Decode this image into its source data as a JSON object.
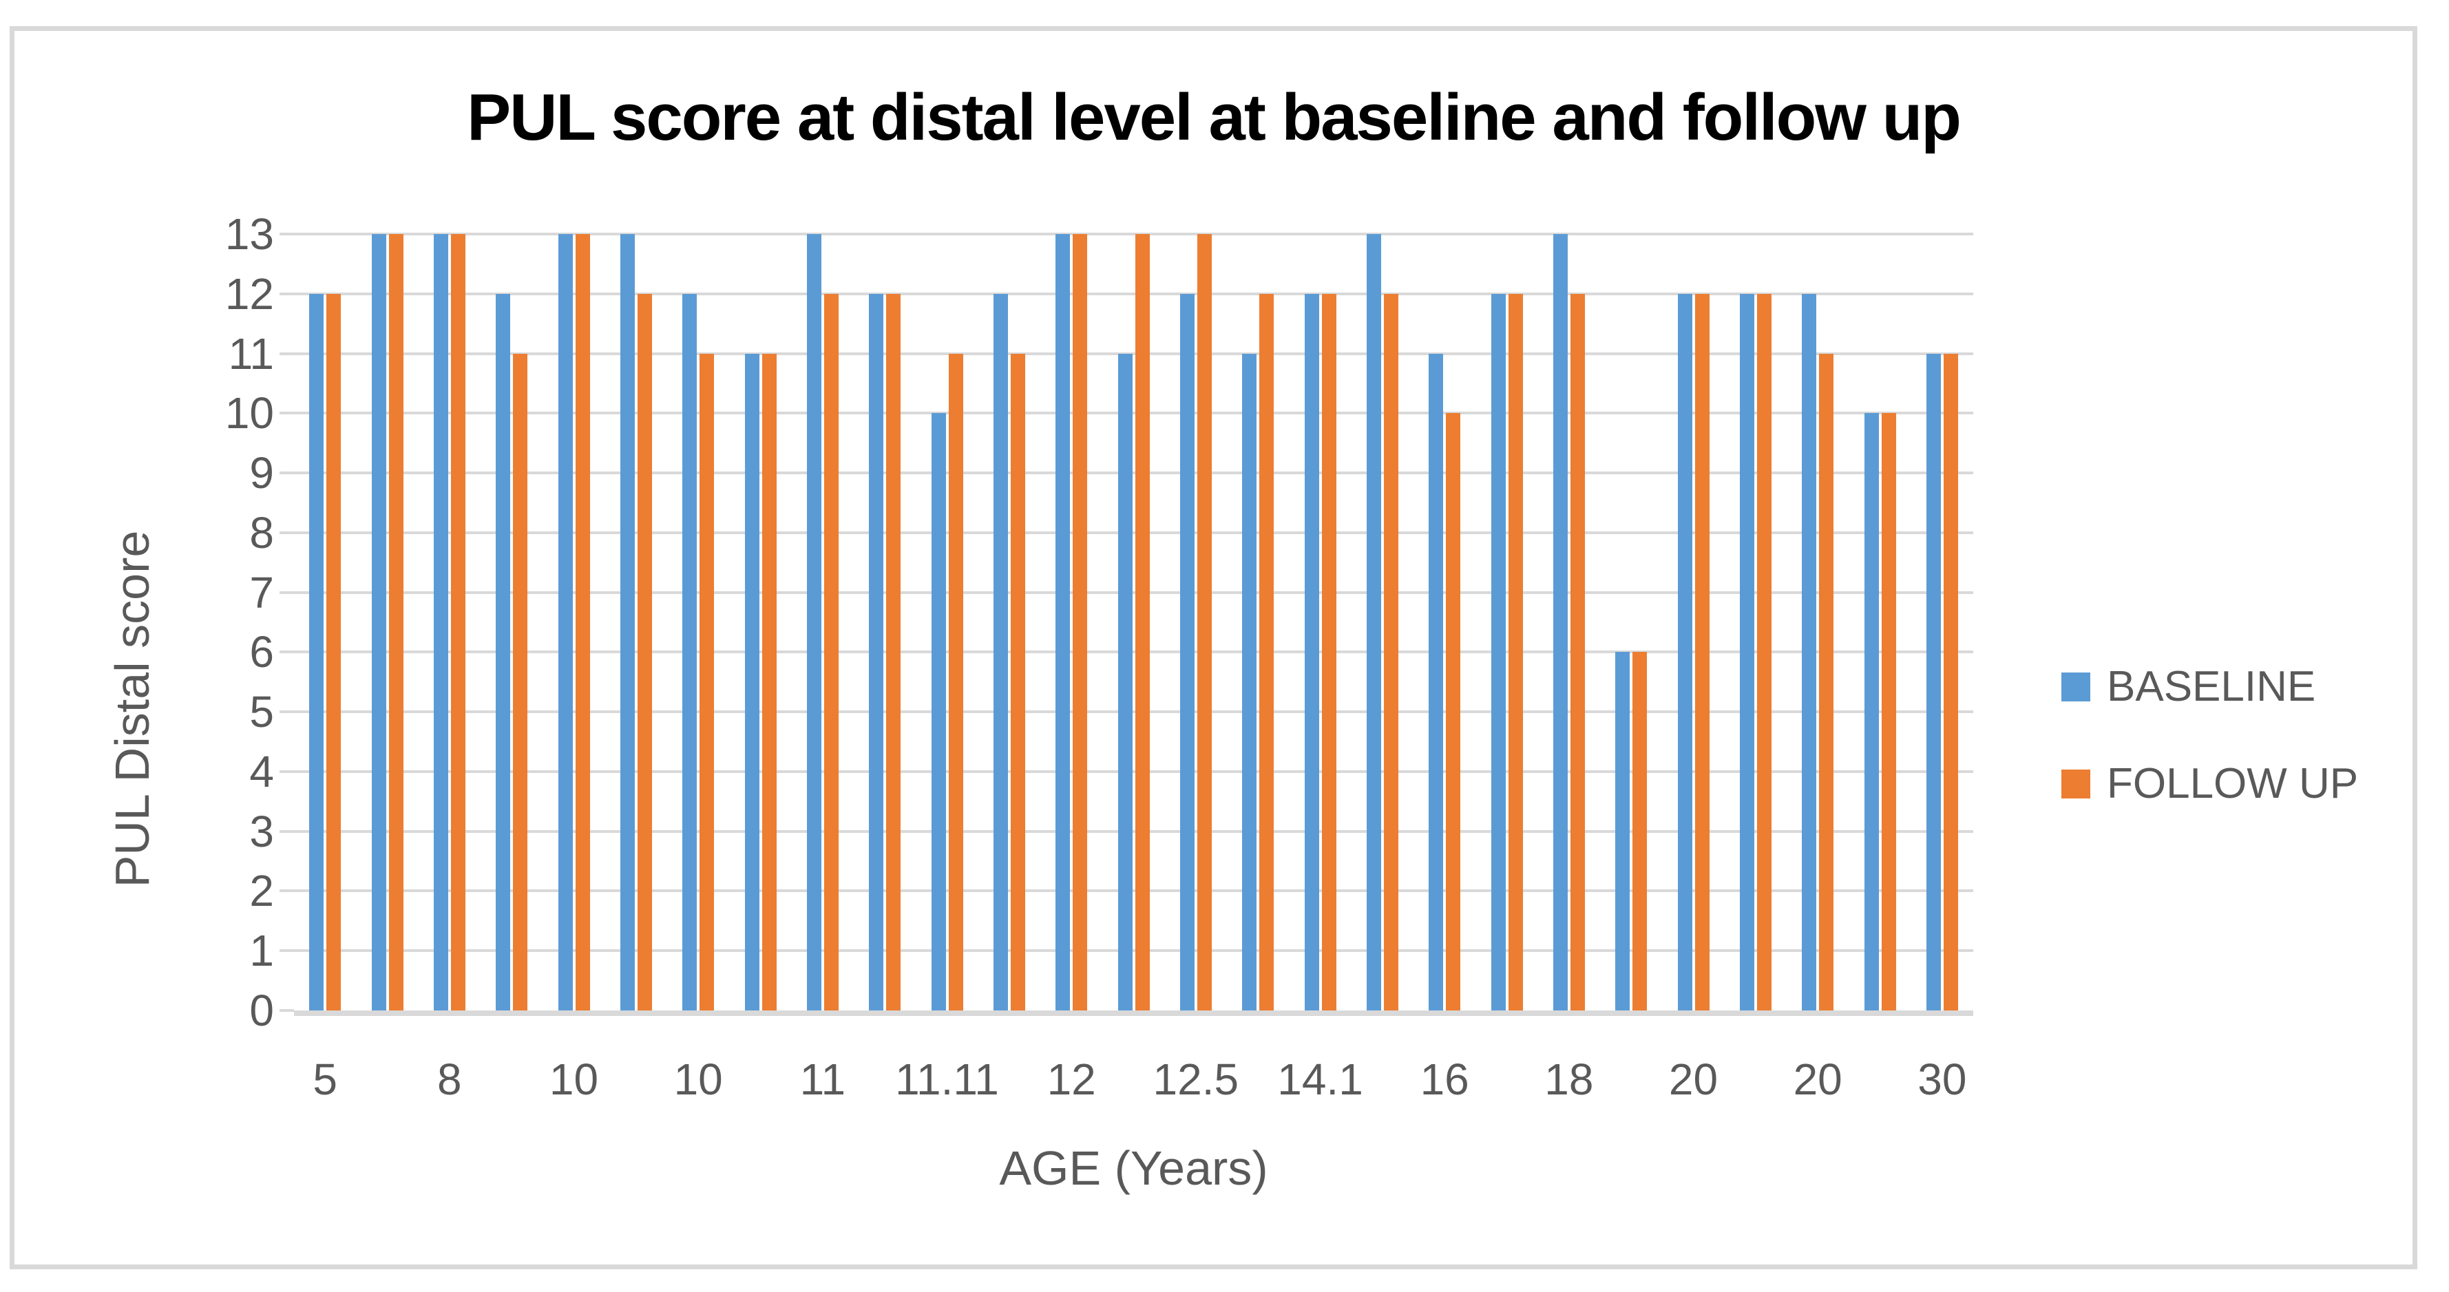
{
  "chart": {
    "title": "PUL score at distal level at baseline and follow up",
    "x_axis_title": "AGE (Years)",
    "y_axis_title": "PUL Distal score"
  },
  "legend": {
    "items": [
      {
        "label": "BASELINE",
        "color": "#5B9BD5"
      },
      {
        "label": "FOLLOW UP",
        "color": "#ED7D31"
      }
    ],
    "position": "right"
  },
  "colors": {
    "baseline_series": "#5B9BD5",
    "followup_series": "#ED7D31",
    "gridline": "#D9D9D9",
    "axis_line": "#D9D9D9",
    "frame_border": "#D9D9D9",
    "axis_text": "#595959",
    "title_text": "#000000"
  },
  "chart_data": {
    "type": "bar",
    "title": "PUL score at distal level at baseline and follow up",
    "xlabel": "AGE (Years)",
    "ylabel": "PUL Distal score",
    "ylim": [
      0,
      13
    ],
    "y_tick_labels": [
      "0",
      "1",
      "2",
      "3",
      "4",
      "5",
      "6",
      "7",
      "8",
      "9",
      "10",
      "11",
      "12",
      "13"
    ],
    "grid": "horizontal",
    "legend_position": "right",
    "categories": [
      "5",
      "",
      "8",
      "",
      "10",
      "",
      "10",
      "",
      "11",
      "",
      "11.11",
      "",
      "12",
      "",
      "12.5",
      "",
      "14.1",
      "",
      "16",
      "",
      "18",
      "",
      "20",
      "",
      "20",
      "",
      "30"
    ],
    "series": [
      {
        "name": "BASELINE",
        "color": "#5B9BD5",
        "values": [
          12,
          13,
          13,
          12,
          13,
          13,
          12,
          11,
          13,
          12,
          10,
          12,
          13,
          11,
          12,
          11,
          12,
          13,
          11,
          12,
          13,
          6,
          12,
          12,
          12,
          10,
          11
        ]
      },
      {
        "name": "FOLLOW UP",
        "color": "#ED7D31",
        "values": [
          12,
          13,
          13,
          11,
          13,
          12,
          11,
          11,
          12,
          12,
          11,
          11,
          13,
          13,
          13,
          12,
          12,
          12,
          10,
          12,
          12,
          6,
          12,
          12,
          11,
          10,
          11
        ]
      }
    ]
  }
}
